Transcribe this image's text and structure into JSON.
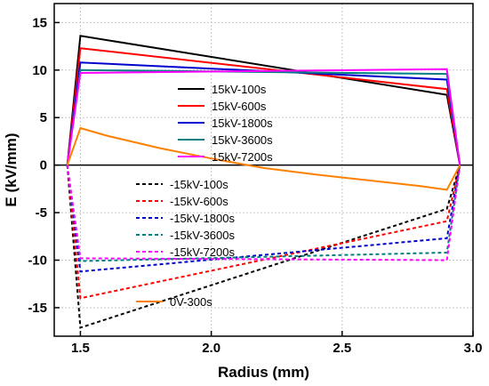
{
  "chart_data": {
    "type": "line",
    "title": "",
    "xlabel": "Radius (mm)",
    "ylabel": "E (kV/mm)",
    "xlim": [
      1.4,
      3.0
    ],
    "ylim": [
      -18,
      17
    ],
    "xticks": [
      1.5,
      2.0,
      2.5,
      3.0
    ],
    "xtick_labels": [
      "1.5",
      "2.0",
      "2.5",
      "3.0"
    ],
    "yticks": [
      -15,
      -10,
      -5,
      0,
      5,
      10,
      15
    ],
    "ytick_labels": [
      "-15",
      "-10",
      "-5",
      "0",
      "5",
      "10",
      "15"
    ],
    "grid": true,
    "zero_line": true,
    "series": [
      {
        "name": "15kV-100s",
        "color": "#000000",
        "dash": "solid",
        "legend_group": 0,
        "x": [
          1.45,
          1.5,
          2.9,
          2.95
        ],
        "y": [
          0,
          13.6,
          7.4,
          0
        ]
      },
      {
        "name": "15kV-600s",
        "color": "#ff0000",
        "dash": "solid",
        "legend_group": 0,
        "x": [
          1.45,
          1.5,
          2.9,
          2.95
        ],
        "y": [
          0,
          12.3,
          8.0,
          0
        ]
      },
      {
        "name": "15kV-1800s",
        "color": "#0000cc",
        "dash": "solid",
        "legend_group": 0,
        "x": [
          1.45,
          1.5,
          2.9,
          2.95
        ],
        "y": [
          0,
          10.8,
          9.0,
          0
        ]
      },
      {
        "name": "15kV-3600s",
        "color": "#008080",
        "dash": "solid",
        "legend_group": 0,
        "x": [
          1.45,
          1.5,
          2.9,
          2.95
        ],
        "y": [
          0,
          10.0,
          9.6,
          0
        ]
      },
      {
        "name": "15kV-7200s",
        "color": "#ff00ff",
        "dash": "solid",
        "legend_group": 0,
        "x": [
          1.45,
          1.5,
          2.9,
          2.95
        ],
        "y": [
          0,
          9.7,
          10.1,
          0
        ]
      },
      {
        "name": "-15kV-100s",
        "color": "#000000",
        "dash": "dashed",
        "legend_group": 1,
        "x": [
          1.45,
          1.5,
          2.9,
          2.95
        ],
        "y": [
          0,
          -17.1,
          -4.6,
          0
        ]
      },
      {
        "name": "-15kV-600s",
        "color": "#ff0000",
        "dash": "dashed",
        "legend_group": 1,
        "x": [
          1.45,
          1.5,
          2.9,
          2.95
        ],
        "y": [
          0,
          -14.0,
          -5.9,
          0
        ]
      },
      {
        "name": "-15kV-1800s",
        "color": "#0000cc",
        "dash": "dashed",
        "legend_group": 1,
        "x": [
          1.45,
          1.5,
          2.9,
          2.95
        ],
        "y": [
          0,
          -11.2,
          -7.7,
          0
        ]
      },
      {
        "name": "-15kV-3600s",
        "color": "#008080",
        "dash": "dashed",
        "legend_group": 1,
        "x": [
          1.45,
          1.5,
          2.9,
          2.95
        ],
        "y": [
          0,
          -10.1,
          -9.2,
          0
        ]
      },
      {
        "name": "-15kV-7200s",
        "color": "#ff00ff",
        "dash": "dashed",
        "legend_group": 1,
        "x": [
          1.45,
          1.5,
          2.9,
          2.95
        ],
        "y": [
          0,
          -9.8,
          -10.0,
          0
        ]
      },
      {
        "name": "0V-300s",
        "color": "#ff8000",
        "dash": "solid",
        "legend_group": 2,
        "x": [
          1.45,
          1.5,
          1.6,
          1.8,
          2.0,
          2.2,
          2.4,
          2.6,
          2.8,
          2.9,
          2.95
        ],
        "y": [
          0,
          3.9,
          3.1,
          1.8,
          0.7,
          -0.3,
          -1.0,
          -1.6,
          -2.2,
          -2.6,
          0
        ]
      }
    ]
  }
}
